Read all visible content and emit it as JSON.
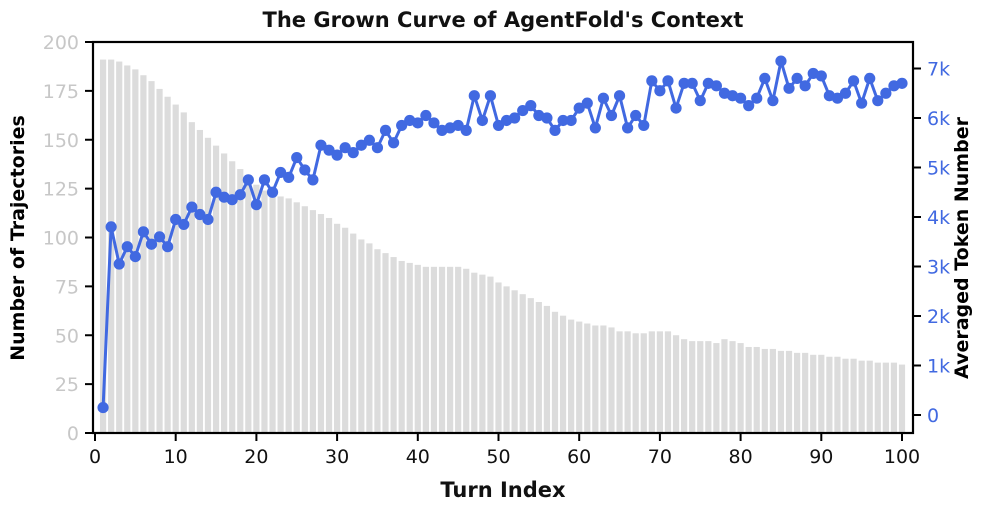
{
  "title": "The Grown Curve of AgentFold's Context",
  "chart_data": {
    "type": "bar",
    "subtype": "bar+line dual axis",
    "title": "The Grown Curve of AgentFold's Context",
    "xlabel": "Turn Index",
    "x_ticks": [
      0,
      10,
      20,
      30,
      40,
      50,
      60,
      70,
      80,
      90,
      100
    ],
    "x_range": [
      -0.3,
      101.4
    ],
    "grid": false,
    "legend": "none",
    "left_axis": {
      "label": "Number of Trajectories",
      "ticks": [
        0,
        25,
        50,
        75,
        100,
        125,
        150,
        175,
        200
      ],
      "range": [
        0,
        200
      ],
      "label_color": "#c7c7c7",
      "tick_color": "#c7c7c7"
    },
    "right_axis": {
      "label": "Averaged Token Number",
      "tick_labels": [
        "0",
        "1k",
        "2k",
        "3k",
        "4k",
        "5k",
        "6k",
        "7k"
      ],
      "tick_values": [
        0,
        1000,
        2000,
        3000,
        4000,
        5000,
        6000,
        7000
      ],
      "range": [
        -350,
        7550
      ],
      "label_color": "#4169e1",
      "tick_color": "#4169e1"
    },
    "x": [
      1,
      2,
      3,
      4,
      5,
      6,
      7,
      8,
      9,
      10,
      11,
      12,
      13,
      14,
      15,
      16,
      17,
      18,
      19,
      20,
      21,
      22,
      23,
      24,
      25,
      26,
      27,
      28,
      29,
      30,
      31,
      32,
      33,
      34,
      35,
      36,
      37,
      38,
      39,
      40,
      41,
      42,
      43,
      44,
      45,
      46,
      47,
      48,
      49,
      50,
      51,
      52,
      53,
      54,
      55,
      56,
      57,
      58,
      59,
      60,
      61,
      62,
      63,
      64,
      65,
      66,
      67,
      68,
      69,
      70,
      71,
      72,
      73,
      74,
      75,
      76,
      77,
      78,
      79,
      80,
      81,
      82,
      83,
      84,
      85,
      86,
      87,
      88,
      89,
      90,
      91,
      92,
      93,
      94,
      95,
      96,
      97,
      98,
      99,
      100
    ],
    "series": [
      {
        "name": "Number of Trajectories",
        "type": "bar",
        "axis": "left",
        "color": "#dcdcdc",
        "values": [
          191,
          191,
          190,
          188,
          186,
          183,
          180,
          176,
          172,
          168,
          164,
          159,
          155,
          151,
          147,
          143,
          139,
          135,
          131,
          127,
          124,
          122,
          121,
          120,
          118,
          116,
          114,
          112,
          110,
          107,
          105,
          102,
          99,
          97,
          94,
          92,
          90,
          88,
          87,
          86,
          85,
          85,
          85,
          85,
          85,
          84,
          82,
          81,
          80,
          77,
          75,
          73,
          71,
          69,
          67,
          65,
          62,
          60,
          58,
          57,
          56,
          55,
          55,
          54,
          52,
          52,
          51,
          51,
          52,
          52,
          52,
          50,
          48,
          47,
          47,
          47,
          46,
          48,
          47,
          46,
          44,
          44,
          43,
          43,
          42,
          42,
          41,
          41,
          40,
          40,
          39,
          39,
          38,
          38,
          37,
          37,
          36,
          36,
          36,
          35
        ]
      },
      {
        "name": "Averaged Token Number",
        "type": "line",
        "axis": "right",
        "color": "#4169e1",
        "marker": "circle",
        "values": [
          150,
          3800,
          3050,
          3400,
          3200,
          3700,
          3450,
          3600,
          3400,
          3950,
          3850,
          4200,
          4050,
          3950,
          4500,
          4400,
          4350,
          4450,
          4750,
          4250,
          4750,
          4500,
          4900,
          4800,
          5200,
          4950,
          4750,
          5450,
          5350,
          5250,
          5400,
          5300,
          5450,
          5550,
          5400,
          5750,
          5500,
          5850,
          5950,
          5900,
          6050,
          5900,
          5750,
          5800,
          5850,
          5750,
          6450,
          5950,
          6450,
          5850,
          5950,
          6000,
          6150,
          6250,
          6050,
          6000,
          5750,
          5950,
          5950,
          6200,
          6300,
          5800,
          6400,
          6050,
          6450,
          5800,
          6050,
          5850,
          6750,
          6550,
          6750,
          6200,
          6700,
          6700,
          6350,
          6700,
          6650,
          6500,
          6450,
          6400,
          6250,
          6400,
          6800,
          6350,
          7150,
          6600,
          6800,
          6650,
          6900,
          6850,
          6450,
          6400,
          6500,
          6750,
          6300,
          6800,
          6350,
          6500,
          6650,
          6700
        ]
      }
    ]
  }
}
